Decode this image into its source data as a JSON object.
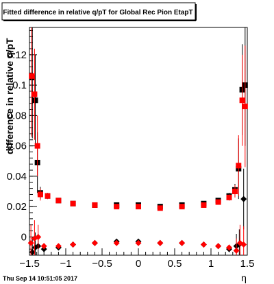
{
  "chart_data": {
    "type": "scatter",
    "title": "Fitted difference in relative q/pT for Global Rec Pion EtapT",
    "xlabel": "η",
    "ylabel": "difference in relative q/pT",
    "xlim": [
      -1.5,
      1.5
    ],
    "ylim": [
      -0.012,
      0.138
    ],
    "x_ticks": [
      -1.5,
      -1,
      -0.5,
      0,
      0.5,
      1,
      1.5
    ],
    "x_tick_labels": [
      "−1.5",
      "−1",
      "−0.5",
      "0",
      "0.5",
      "1",
      "1.5"
    ],
    "y_ticks": [
      0,
      0.02,
      0.04,
      0.06,
      0.08,
      0.1,
      0.12
    ],
    "y_tick_labels": [
      "0",
      "0.02",
      "0.04",
      "0.06",
      "0.08",
      "0.1",
      "0.12"
    ],
    "footer": "Thu Sep 14 10:51:05 2017",
    "series": [
      {
        "marker": "square",
        "color": "#000000",
        "points": [
          {
            "x": -1.46,
            "y": 0.105,
            "err": 0.04
          },
          {
            "x": -1.42,
            "y": 0.09,
            "err": 0.03
          },
          {
            "x": -1.39,
            "y": 0.049,
            "err": 0.02
          },
          {
            "x": -1.35,
            "y": 0.029,
            "err": 0.004
          },
          {
            "x": -1.25,
            "y": 0.027,
            "err": 0.002
          },
          {
            "x": -1.1,
            "y": 0.024,
            "err": 0.001
          },
          {
            "x": -0.9,
            "y": 0.022,
            "err": 0.001
          },
          {
            "x": -0.6,
            "y": 0.021,
            "err": 0.001
          },
          {
            "x": -0.3,
            "y": 0.021,
            "err": 0.001
          },
          {
            "x": 0.0,
            "y": 0.021,
            "err": 0.001
          },
          {
            "x": 0.3,
            "y": 0.02,
            "err": 0.001
          },
          {
            "x": 0.6,
            "y": 0.021,
            "err": 0.001
          },
          {
            "x": 0.9,
            "y": 0.022,
            "err": 0.001
          },
          {
            "x": 1.1,
            "y": 0.024,
            "err": 0.001
          },
          {
            "x": 1.25,
            "y": 0.027,
            "err": 0.002
          },
          {
            "x": 1.33,
            "y": 0.031,
            "err": 0.004
          },
          {
            "x": 1.38,
            "y": 0.045,
            "err": 0.02
          },
          {
            "x": 1.43,
            "y": 0.097,
            "err": 0.03
          },
          {
            "x": 1.47,
            "y": 0.1,
            "err": 0.04
          }
        ]
      },
      {
        "marker": "square",
        "color": "#ff0000",
        "points": [
          {
            "x": -1.47,
            "y": 0.106,
            "err": 0.04
          },
          {
            "x": -1.43,
            "y": 0.094,
            "err": 0.03
          },
          {
            "x": -1.39,
            "y": 0.06,
            "err": 0.02
          },
          {
            "x": -1.35,
            "y": 0.028,
            "err": 0.004
          },
          {
            "x": -1.25,
            "y": 0.027,
            "err": 0.002
          },
          {
            "x": -1.1,
            "y": 0.024,
            "err": 0.001
          },
          {
            "x": -0.9,
            "y": 0.022,
            "err": 0.001
          },
          {
            "x": -0.6,
            "y": 0.021,
            "err": 0.001
          },
          {
            "x": -0.3,
            "y": 0.02,
            "err": 0.001
          },
          {
            "x": 0.0,
            "y": 0.02,
            "err": 0.001
          },
          {
            "x": 0.3,
            "y": 0.019,
            "err": 0.001
          },
          {
            "x": 0.6,
            "y": 0.02,
            "err": 0.001
          },
          {
            "x": 0.9,
            "y": 0.021,
            "err": 0.001
          },
          {
            "x": 1.1,
            "y": 0.023,
            "err": 0.001
          },
          {
            "x": 1.25,
            "y": 0.026,
            "err": 0.002
          },
          {
            "x": 1.33,
            "y": 0.03,
            "err": 0.004
          },
          {
            "x": 1.38,
            "y": 0.047,
            "err": 0.02
          },
          {
            "x": 1.43,
            "y": 0.09,
            "err": 0.03
          },
          {
            "x": 1.47,
            "y": 0.086,
            "err": 0.04
          }
        ]
      },
      {
        "marker": "diamond",
        "color": "#000000",
        "points": [
          {
            "x": -1.46,
            "y": -0.01,
            "err": 0.01
          },
          {
            "x": -1.42,
            "y": -0.007,
            "err": 0.01
          },
          {
            "x": -1.38,
            "y": -0.006,
            "err": 0.008
          },
          {
            "x": -1.3,
            "y": -0.008,
            "err": 0.002
          },
          {
            "x": -1.1,
            "y": -0.007,
            "err": 0.001
          },
          {
            "x": -0.9,
            "y": -0.005,
            "err": 0.001
          },
          {
            "x": -0.6,
            "y": -0.004,
            "err": 0.001
          },
          {
            "x": -0.3,
            "y": -0.003,
            "err": 0.001
          },
          {
            "x": 0.0,
            "y": -0.003,
            "err": 0.001
          },
          {
            "x": 0.3,
            "y": -0.004,
            "err": 0.001
          },
          {
            "x": 0.6,
            "y": -0.004,
            "err": 0.001
          },
          {
            "x": 0.9,
            "y": -0.005,
            "err": 0.001
          },
          {
            "x": 1.1,
            "y": -0.006,
            "err": 0.001
          },
          {
            "x": 1.25,
            "y": -0.008,
            "err": 0.002
          },
          {
            "x": 1.35,
            "y": -0.006,
            "err": 0.008
          },
          {
            "x": 1.39,
            "y": -0.005,
            "err": 0.01
          },
          {
            "x": 1.45,
            "y": 0.025,
            "err": 0.02
          }
        ]
      },
      {
        "marker": "diamond",
        "color": "#ff0000",
        "points": [
          {
            "x": -1.48,
            "y": -0.004,
            "err": 0.012
          },
          {
            "x": -1.43,
            "y": -0.001,
            "err": 0.012
          },
          {
            "x": -1.38,
            "y": 0.0,
            "err": 0.008
          },
          {
            "x": -1.3,
            "y": -0.006,
            "err": 0.002
          },
          {
            "x": -1.1,
            "y": -0.006,
            "err": 0.001
          },
          {
            "x": -0.9,
            "y": -0.005,
            "err": 0.001
          },
          {
            "x": -0.6,
            "y": -0.004,
            "err": 0.001
          },
          {
            "x": -0.3,
            "y": -0.004,
            "err": 0.001
          },
          {
            "x": 0.0,
            "y": -0.004,
            "err": 0.001
          },
          {
            "x": 0.3,
            "y": -0.004,
            "err": 0.001
          },
          {
            "x": 0.6,
            "y": -0.004,
            "err": 0.001
          },
          {
            "x": 0.9,
            "y": -0.005,
            "err": 0.001
          },
          {
            "x": 1.1,
            "y": -0.006,
            "err": 0.001
          },
          {
            "x": 1.25,
            "y": -0.007,
            "err": 0.002
          },
          {
            "x": 1.35,
            "y": -0.009,
            "err": 0.008
          },
          {
            "x": 1.4,
            "y": -0.004,
            "err": 0.012
          },
          {
            "x": 1.45,
            "y": -0.005,
            "err": 0.012
          }
        ]
      }
    ]
  }
}
